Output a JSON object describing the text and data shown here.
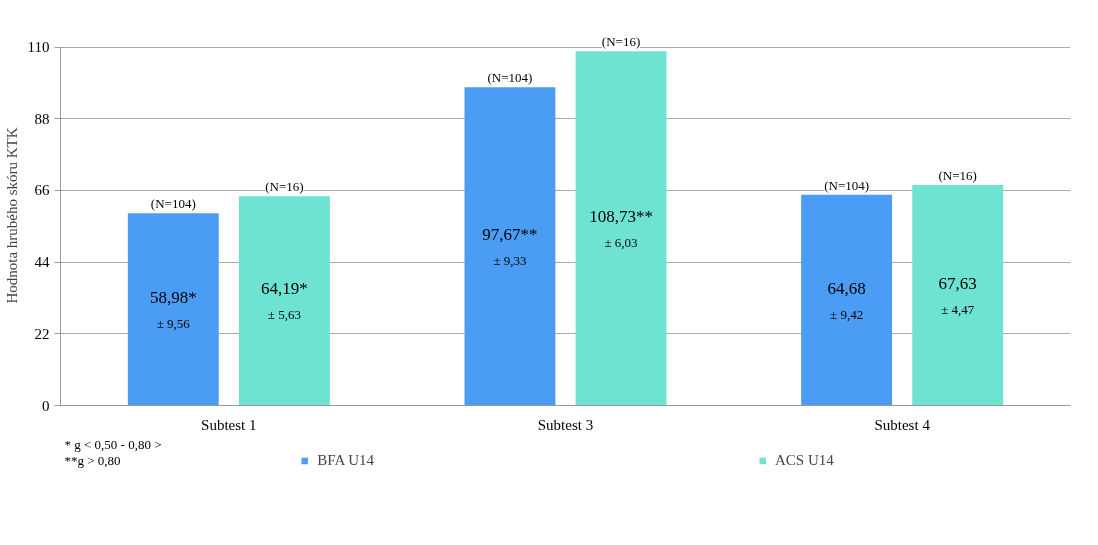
{
  "chart_data": {
    "type": "bar",
    "ylabel": "Hodnota hrubého skóru KTK",
    "categories": [
      "Subtest 1",
      "Subtest 3",
      "Subtest 4"
    ],
    "series": [
      {
        "name": "BFA U14",
        "color": "#4a9cf5",
        "values": [
          58.98,
          97.67,
          64.68
        ],
        "value_labels": [
          "58,98*\n± 9,56",
          "97,67**\n± 9,33",
          "64,68\n± 9,42"
        ]
      },
      {
        "name": "ACS U14",
        "color": "#6ee3d1",
        "values": [
          64.19,
          108.73,
          67.63
        ],
        "value_labels": [
          "64,19*\n± 5,63",
          "108,73**\n± 6,03",
          "67,63\n± 4,47"
        ]
      }
    ],
    "ylim": [
      0,
      110
    ],
    "yticks": [
      0,
      22,
      44,
      66,
      88,
      110
    ],
    "grid": "y",
    "legend": "bottom",
    "annotations": [
      "(N=104)",
      "(N=16)",
      "(N=104)",
      "(N=16)",
      "(N=104)",
      "(N=16)",
      "* g < 0,50 - 0,80 >",
      "**g > 0,80"
    ]
  }
}
